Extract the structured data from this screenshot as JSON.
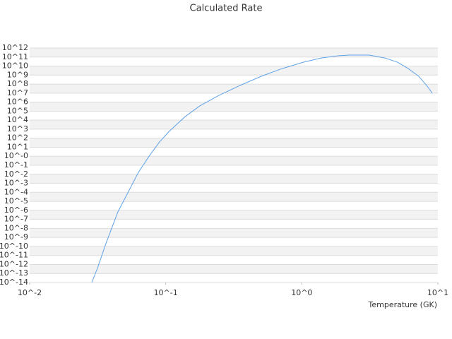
{
  "chart_data": {
    "type": "line",
    "title": "Calculated Rate",
    "x_label": "Temperature (GK)",
    "x_log": true,
    "y_log": true,
    "grid": true,
    "xlim": [
      0.01,
      10
    ],
    "xticks": [
      {
        "value": 0.01,
        "label": "10^-2"
      },
      {
        "value": 0.1,
        "label": "10^-1"
      },
      {
        "value": 1,
        "label": "10^0"
      },
      {
        "value": 10,
        "label": "10^1"
      }
    ],
    "ylim": [
      1e-14,
      1000000000000.0
    ],
    "yticks": [
      {
        "value": 1000000000000.0,
        "label": "10^12"
      },
      {
        "value": 100000000000.0,
        "label": "10^11"
      },
      {
        "value": 10000000000.0,
        "label": "10^10"
      },
      {
        "value": 1000000000.0,
        "label": "10^9"
      },
      {
        "value": 100000000.0,
        "label": "10^8"
      },
      {
        "value": 10000000.0,
        "label": "10^7"
      },
      {
        "value": 1000000.0,
        "label": "10^6"
      },
      {
        "value": 100000.0,
        "label": "10^5"
      },
      {
        "value": 10000.0,
        "label": "10^4"
      },
      {
        "value": 1000.0,
        "label": "10^3"
      },
      {
        "value": 100,
        "label": "10^2"
      },
      {
        "value": 10,
        "label": "10^1"
      },
      {
        "value": 1,
        "label": "10^-0"
      },
      {
        "value": 0.1,
        "label": "10^-1"
      },
      {
        "value": 0.01,
        "label": "10^-2"
      },
      {
        "value": 0.001,
        "label": "10^-3"
      },
      {
        "value": 0.0001,
        "label": "10^-4"
      },
      {
        "value": 1e-05,
        "label": "10^-5"
      },
      {
        "value": 1e-06,
        "label": "10^-6"
      },
      {
        "value": 1e-07,
        "label": "10^-7"
      },
      {
        "value": 1e-08,
        "label": "10^-8"
      },
      {
        "value": 1e-09,
        "label": "10^-9"
      },
      {
        "value": 1e-10,
        "label": "10^-10"
      },
      {
        "value": 1e-11,
        "label": "10^-11"
      },
      {
        "value": 1e-12,
        "label": "10^-12"
      },
      {
        "value": 1e-13,
        "label": "10^-13"
      },
      {
        "value": 1e-14,
        "label": "10^-14"
      }
    ],
    "x": [
      0.0286,
      0.0315,
      0.0363,
      0.0445,
      0.052,
      0.063,
      0.0762,
      0.09,
      0.106,
      0.139,
      0.178,
      0.246,
      0.352,
      0.503,
      0.721,
      1.03,
      1.39,
      1.87,
      2.24,
      3.13,
      4.08,
      5.05,
      6.04,
      7.23,
      8.35,
      9.08
    ],
    "series": [
      {
        "color": "#5fa2e8",
        "values": [
          1e-14,
          3.9e-13,
          2e-10,
          6.8e-07,
          6.2e-05,
          0.0166,
          1.26,
          38,
          575,
          25000,
          380000,
          5600000.0,
          71000000.0,
          740000000.0,
          5400000000.0,
          27000000000.0,
          79000000000.0,
          140000000000.0,
          166000000000.0,
          166000000000.0,
          79000000000.0,
          27000000000.0,
          5400000000.0,
          740000000.0,
          59000000.0,
          9800000.0
        ]
      }
    ]
  }
}
